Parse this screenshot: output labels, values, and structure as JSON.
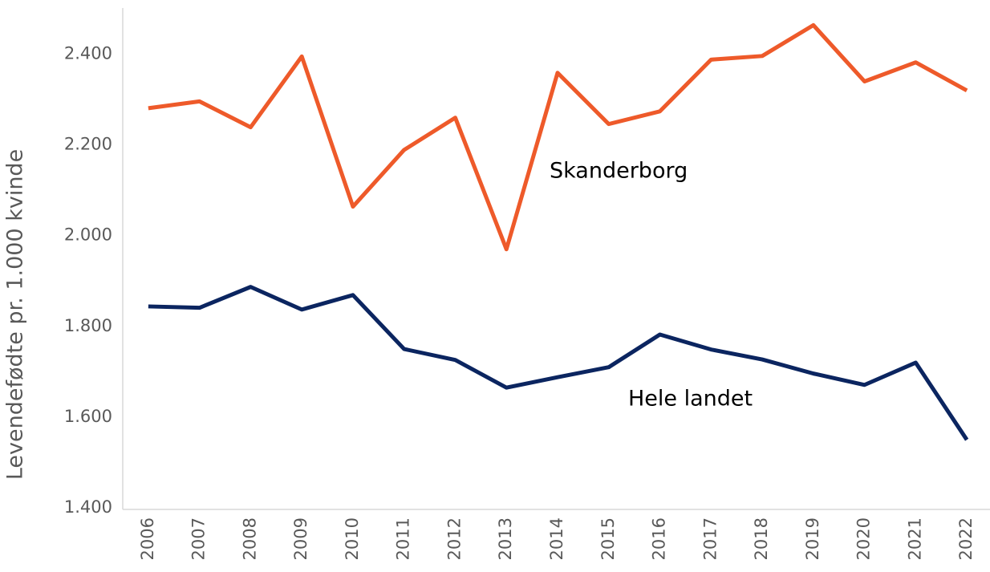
{
  "chart_data": {
    "type": "line",
    "y_label": "Levendefødte pr. 1.000 kvinde",
    "categories": [
      "2006",
      "2007",
      "2008",
      "2009",
      "2010",
      "2011",
      "2012",
      "2013",
      "2014",
      "2015",
      "2016",
      "2017",
      "2018",
      "2019",
      "2020",
      "2021",
      "2022"
    ],
    "series": [
      {
        "name": "Skanderborg",
        "color": "#ee5a2a",
        "values": [
          2281,
          2296,
          2239,
          2395,
          2064,
          2189,
          2260,
          1970,
          2359,
          2246,
          2274,
          2388,
          2396,
          2464,
          2340,
          2382,
          2320
        ]
      },
      {
        "name": "Hele landet",
        "color": "#0b2560",
        "values": [
          1844,
          1841,
          1887,
          1837,
          1869,
          1750,
          1726,
          1665,
          1688,
          1710,
          1782,
          1749,
          1727,
          1696,
          1671,
          1720,
          1550
        ]
      }
    ],
    "ylim": [
      1400,
      2500
    ],
    "yticks": [
      {
        "value": 1400,
        "label": "1.400"
      },
      {
        "value": 1600,
        "label": "1.600"
      },
      {
        "value": 1800,
        "label": "1.800"
      },
      {
        "value": 2000,
        "label": "2.000"
      },
      {
        "value": 2200,
        "label": "2.200"
      },
      {
        "value": 2400,
        "label": "2.400"
      }
    ],
    "grid": false
  }
}
